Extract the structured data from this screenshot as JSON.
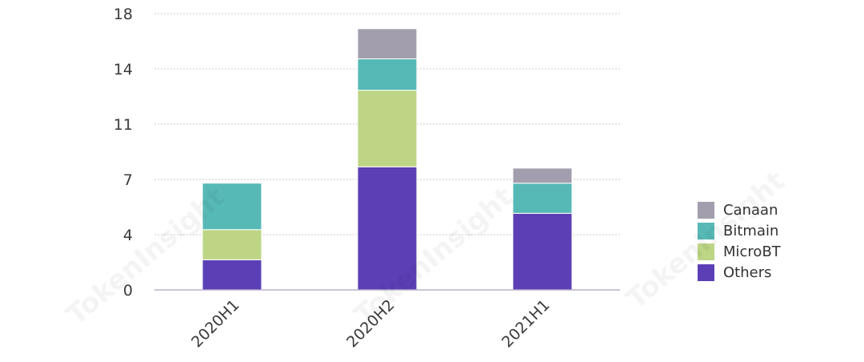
{
  "chart_data": {
    "type": "bar",
    "stacked": true,
    "categories": [
      "2020H1",
      "2020H2",
      "2021H1"
    ],
    "series": [
      {
        "name": "Others",
        "color": "#5b3fb5",
        "values": [
          2.4,
          9.8,
          6.1
        ]
      },
      {
        "name": "MicroBT",
        "color": "#bdd585",
        "values": [
          2.4,
          6.1,
          0
        ]
      },
      {
        "name": "Bitmain",
        "color": "#57b9b5",
        "values": [
          3.7,
          2.5,
          2.4
        ]
      },
      {
        "name": "Canaan",
        "color": "#a39ead",
        "values": [
          0,
          2.4,
          1.2
        ]
      }
    ],
    "yticks": [
      "0",
      "4",
      "7",
      "11",
      "14",
      "18"
    ],
    "ylim": [
      0,
      22
    ],
    "grid": true,
    "legend_position": "right",
    "watermark": "TokenInsight"
  }
}
